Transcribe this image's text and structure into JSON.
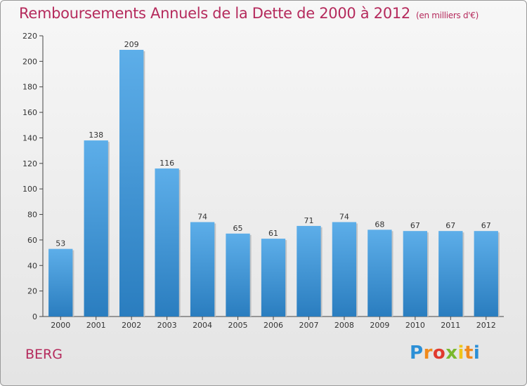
{
  "header": {
    "title": "Remboursements Annuels de la Dette de 2000 à 2012",
    "subtitle": "(en milliers d'€)"
  },
  "footer": {
    "commune": "BERG",
    "logo_text": "Proxiti"
  },
  "colors": {
    "title": "#b52a5c",
    "bar_top": "#5daee9",
    "bar_bottom": "#2a7dbf"
  },
  "chart_data": {
    "type": "bar",
    "title": "Remboursements Annuels de la Dette de 2000 à 2012",
    "subtitle": "(en milliers d'€)",
    "xlabel": "",
    "ylabel": "",
    "categories": [
      "2000",
      "2001",
      "2002",
      "2003",
      "2004",
      "2005",
      "2006",
      "2007",
      "2008",
      "2009",
      "2010",
      "2011",
      "2012"
    ],
    "values": [
      53,
      138,
      209,
      116,
      74,
      65,
      61,
      71,
      74,
      68,
      67,
      67,
      67
    ],
    "ylim": [
      0,
      220
    ],
    "yticks": [
      0,
      20,
      40,
      60,
      80,
      100,
      120,
      140,
      160,
      180,
      200,
      220
    ],
    "grid": false,
    "legend": "none"
  }
}
